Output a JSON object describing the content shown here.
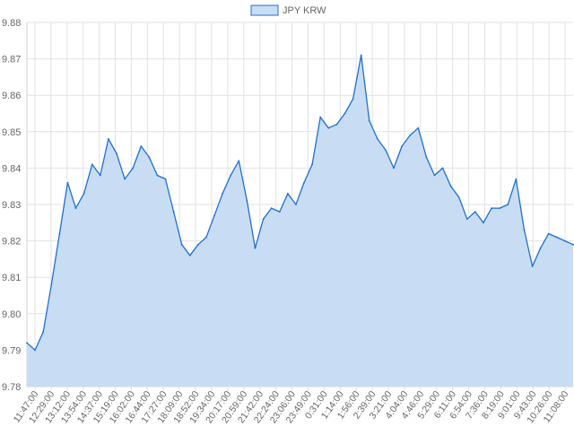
{
  "chart_data": {
    "type": "area",
    "title": "",
    "xlabel": "",
    "ylabel": "",
    "legend": {
      "position": "top",
      "label": "JPY KRW"
    },
    "grid": true,
    "ylim": [
      9.78,
      9.88
    ],
    "yticks": [
      "9.78",
      "9.79",
      "9.80",
      "9.81",
      "9.82",
      "9.83",
      "9.84",
      "9.85",
      "9.86",
      "9.87",
      "9.88"
    ],
    "xticks": [
      "11:47:00",
      "12:29:00",
      "13:12:00",
      "13:54:00",
      "14:37:00",
      "15:19:00",
      "16:02:00",
      "16:44:00",
      "17:27:00",
      "18:09:00",
      "18:52:00",
      "19:34:00",
      "20:17:00",
      "20:59:00",
      "21:42:00",
      "22:24:00",
      "23:06:00",
      "23:49:00",
      "0:31:00",
      "1:14:00",
      "1:56:00",
      "2:39:00",
      "3:21:00",
      "4:04:00",
      "4:46:00",
      "5:29:00",
      "6:11:00",
      "6:54:00",
      "7:36:00",
      "8:19:00",
      "9:01:00",
      "9:43:00",
      "10:26:00",
      "11:08:00"
    ],
    "series": [
      {
        "name": "JPY KRW",
        "x": [
          "11:47:00",
          "12:08:00",
          "12:29:00",
          "12:50:00",
          "13:12:00",
          "13:33:00",
          "13:54:00",
          "14:15:00",
          "14:37:00",
          "14:58:00",
          "15:19:00",
          "15:40:00",
          "16:02:00",
          "16:23:00",
          "16:44:00",
          "17:05:00",
          "17:27:00",
          "17:48:00",
          "18:09:00",
          "18:30:00",
          "18:52:00",
          "19:13:00",
          "19:34:00",
          "19:55:00",
          "20:17:00",
          "20:38:00",
          "20:59:00",
          "21:20:00",
          "21:42:00",
          "22:03:00",
          "22:24:00",
          "22:45:00",
          "23:06:00",
          "23:27:00",
          "23:49:00",
          "0:10:00",
          "0:31:00",
          "0:52:00",
          "1:14:00",
          "1:35:00",
          "1:56:00",
          "2:17:00",
          "2:39:00",
          "3:00:00",
          "3:21:00",
          "3:42:00",
          "4:04:00",
          "4:25:00",
          "4:46:00",
          "5:07:00",
          "5:29:00",
          "5:50:00",
          "6:11:00",
          "6:32:00",
          "6:54:00",
          "7:15:00",
          "7:36:00",
          "7:57:00",
          "8:19:00",
          "8:40:00",
          "9:01:00",
          "9:22:00",
          "9:43:00",
          "10:04:00",
          "10:26:00",
          "10:47:00",
          "11:08:00",
          "11:29:00"
        ],
        "values": [
          9.792,
          9.79,
          9.795,
          9.808,
          9.822,
          9.836,
          9.829,
          9.833,
          9.841,
          9.838,
          9.848,
          9.844,
          9.837,
          9.84,
          9.846,
          9.843,
          9.838,
          9.837,
          9.828,
          9.819,
          9.816,
          9.819,
          9.821,
          9.827,
          9.833,
          9.838,
          9.842,
          9.831,
          9.818,
          9.826,
          9.829,
          9.828,
          9.833,
          9.83,
          9.836,
          9.841,
          9.854,
          9.851,
          9.852,
          9.855,
          9.859,
          9.871,
          9.853,
          9.848,
          9.845,
          9.84,
          9.846,
          9.849,
          9.851,
          9.843,
          9.838,
          9.84,
          9.835,
          9.832,
          9.826,
          9.828,
          9.825,
          9.829,
          9.829,
          9.83,
          9.837,
          9.823,
          9.813,
          9.818,
          9.822,
          9.821,
          9.82,
          9.819
        ]
      }
    ],
    "colors": {
      "line": "#1f6fd1",
      "fill": "#c8ddf4",
      "grid": "#e2e2e2",
      "text": "#666666"
    }
  }
}
